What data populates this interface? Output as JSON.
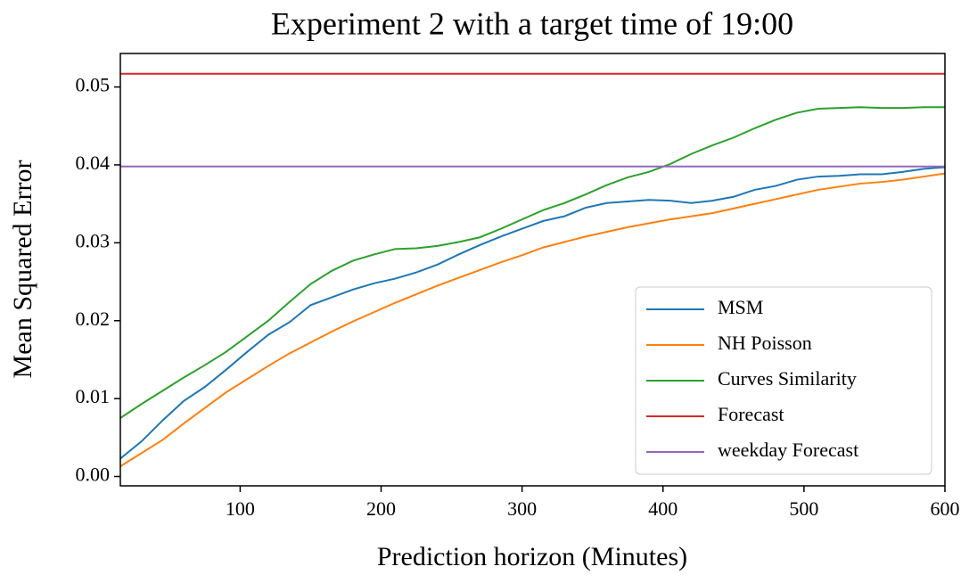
{
  "chart_data": {
    "type": "line",
    "title": "Experiment 2 with a target time of 19:00",
    "xlabel": "Prediction horizon (Minutes)",
    "ylabel": "Mean Squared Error",
    "x": [
      15,
      30,
      45,
      60,
      75,
      90,
      105,
      120,
      135,
      150,
      165,
      180,
      195,
      210,
      225,
      240,
      255,
      270,
      285,
      300,
      315,
      330,
      345,
      360,
      375,
      390,
      405,
      420,
      435,
      450,
      465,
      480,
      495,
      510,
      525,
      540,
      555,
      570,
      585,
      600
    ],
    "series": [
      {
        "name": "MSM",
        "color": "#1f77b4",
        "values": [
          0.0023,
          0.0045,
          0.0072,
          0.0097,
          0.0115,
          0.0137,
          0.016,
          0.0182,
          0.0198,
          0.022,
          0.023,
          0.024,
          0.0248,
          0.0254,
          0.0262,
          0.0272,
          0.0285,
          0.0297,
          0.0308,
          0.0318,
          0.0328,
          0.0334,
          0.0345,
          0.0351,
          0.0353,
          0.0355,
          0.0354,
          0.0351,
          0.0354,
          0.0359,
          0.0368,
          0.0373,
          0.0381,
          0.0385,
          0.0386,
          0.0388,
          0.0388,
          0.0391,
          0.0395,
          0.0397
        ]
      },
      {
        "name": "NH Poisson",
        "color": "#ff7f0e",
        "values": [
          0.0013,
          0.003,
          0.0047,
          0.0068,
          0.0088,
          0.0108,
          0.0125,
          0.0142,
          0.0158,
          0.0172,
          0.0186,
          0.0199,
          0.0211,
          0.0223,
          0.0234,
          0.0245,
          0.0255,
          0.0265,
          0.0275,
          0.0284,
          0.0294,
          0.0301,
          0.0308,
          0.0314,
          0.032,
          0.0325,
          0.033,
          0.0334,
          0.0338,
          0.0344,
          0.035,
          0.0356,
          0.0362,
          0.0368,
          0.0372,
          0.0376,
          0.0378,
          0.0381,
          0.0385,
          0.0389
        ]
      },
      {
        "name": "Curves Similarity",
        "color": "#2ca02c",
        "values": [
          0.0075,
          0.0093,
          0.011,
          0.0127,
          0.0143,
          0.016,
          0.018,
          0.02,
          0.0224,
          0.0247,
          0.0264,
          0.0277,
          0.0285,
          0.0292,
          0.0293,
          0.0296,
          0.0301,
          0.0307,
          0.0318,
          0.033,
          0.0342,
          0.0351,
          0.0362,
          0.0374,
          0.0384,
          0.0391,
          0.0401,
          0.0414,
          0.0425,
          0.0435,
          0.0447,
          0.0458,
          0.0467,
          0.0472,
          0.0473,
          0.0474,
          0.0473,
          0.0473,
          0.0474,
          0.0474
        ]
      },
      {
        "name": "Forecast",
        "color": "#d62728",
        "values": [
          0.0517,
          0.0517,
          0.0517,
          0.0517,
          0.0517,
          0.0517,
          0.0517,
          0.0517,
          0.0517,
          0.0517,
          0.0517,
          0.0517,
          0.0517,
          0.0517,
          0.0517,
          0.0517,
          0.0517,
          0.0517,
          0.0517,
          0.0517,
          0.0517,
          0.0517,
          0.0517,
          0.0517,
          0.0517,
          0.0517,
          0.0517,
          0.0517,
          0.0517,
          0.0517,
          0.0517,
          0.0517,
          0.0517,
          0.0517,
          0.0517,
          0.0517,
          0.0517,
          0.0517,
          0.0517,
          0.0517
        ]
      },
      {
        "name": "weekday Forecast",
        "color": "#9467bd",
        "values": [
          0.0398,
          0.0398,
          0.0398,
          0.0398,
          0.0398,
          0.0398,
          0.0398,
          0.0398,
          0.0398,
          0.0398,
          0.0398,
          0.0398,
          0.0398,
          0.0398,
          0.0398,
          0.0398,
          0.0398,
          0.0398,
          0.0398,
          0.0398,
          0.0398,
          0.0398,
          0.0398,
          0.0398,
          0.0398,
          0.0398,
          0.0398,
          0.0398,
          0.0398,
          0.0398,
          0.0398,
          0.0398,
          0.0398,
          0.0398,
          0.0398,
          0.0398,
          0.0398,
          0.0398,
          0.0398,
          0.0398
        ]
      }
    ],
    "xlim": [
      15,
      600
    ],
    "xticks": [
      100,
      200,
      300,
      400,
      500,
      600
    ],
    "ylim": [
      -0.0012,
      0.0543
    ],
    "yticks": [
      {
        "value": 0,
        "label": "0.00"
      },
      0.01,
      0.02,
      0.03,
      0.04,
      0.05
    ],
    "legend": "lower right",
    "grid": false
  }
}
